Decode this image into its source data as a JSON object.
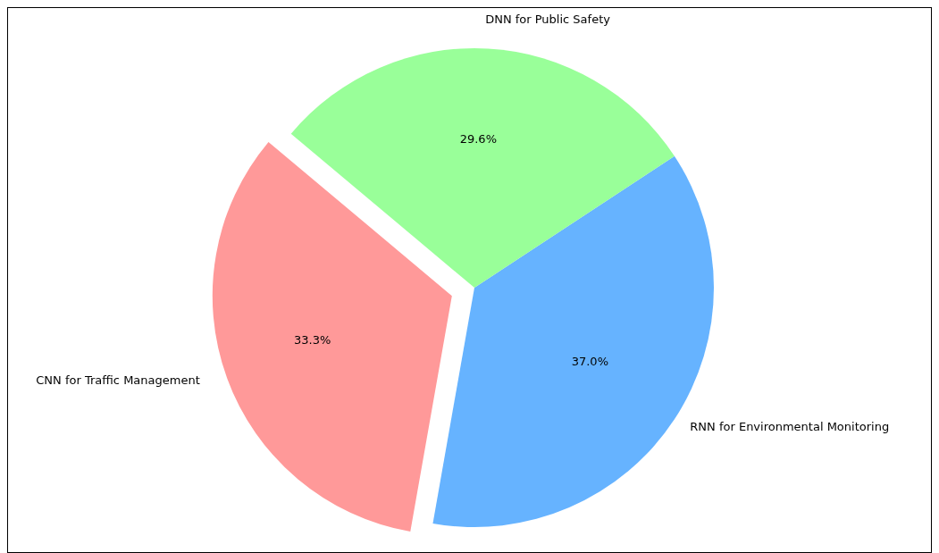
{
  "chart_data": {
    "type": "pie",
    "categories": [
      "CNN for Traffic Management",
      "RNN for Environmental Monitoring",
      "DNN for Public Safety"
    ],
    "values": [
      33.3,
      37.0,
      29.6
    ],
    "colors": [
      "#ff9999",
      "#66b3ff",
      "#99ff99"
    ],
    "value_labels": [
      "33.3%",
      "37.0%",
      "29.6%"
    ]
  }
}
